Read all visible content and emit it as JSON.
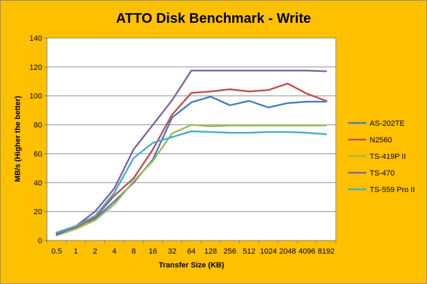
{
  "chart_data": {
    "type": "line",
    "title": "ATTO Disk Benchmark - Write",
    "xlabel": "Transfer Size (KB)",
    "ylabel": "MB/s (Higher the better)",
    "ylim": [
      0,
      140
    ],
    "yticks": [
      0,
      20,
      40,
      60,
      80,
      100,
      120,
      140
    ],
    "grid": "horizontal",
    "legend_position": "right",
    "categories": [
      "0.5",
      "1",
      "2",
      "4",
      "8",
      "16",
      "32",
      "64",
      "128",
      "256",
      "512",
      "1024",
      "2048",
      "4096",
      "8192"
    ],
    "series": [
      {
        "name": "AS-202TE",
        "color": "#4a7ebb",
        "values": [
          5,
          10,
          15,
          27,
          40,
          56,
          85,
          95.5,
          99.5,
          93.5,
          96.5,
          92,
          95,
          96,
          96
        ]
      },
      {
        "name": "N2560",
        "color": "#c0504d",
        "values": [
          5,
          9,
          16,
          31,
          43,
          63,
          87,
          102,
          103,
          104.5,
          103,
          104,
          108.5,
          101.5,
          96.5
        ]
      },
      {
        "name": "TS-419P II",
        "color": "#9bbb59",
        "values": [
          3.5,
          8,
          14,
          25,
          41,
          55,
          74,
          80,
          79,
          79.5,
          79.5,
          79.5,
          79.5,
          79.5,
          79.5
        ]
      },
      {
        "name": "TS-470",
        "color": "#8064a2",
        "values": [
          4,
          10,
          20,
          36,
          63,
          80,
          97,
          117.5,
          117.5,
          117.5,
          117.5,
          117.5,
          117.5,
          117.5,
          117
        ]
      },
      {
        "name": "TS-559 Pro II",
        "color": "#4bacc6",
        "values": [
          5.5,
          10,
          17,
          33,
          57,
          67.5,
          71.5,
          75.5,
          75,
          74.5,
          74.5,
          75,
          75,
          74.5,
          73.5
        ]
      }
    ]
  }
}
